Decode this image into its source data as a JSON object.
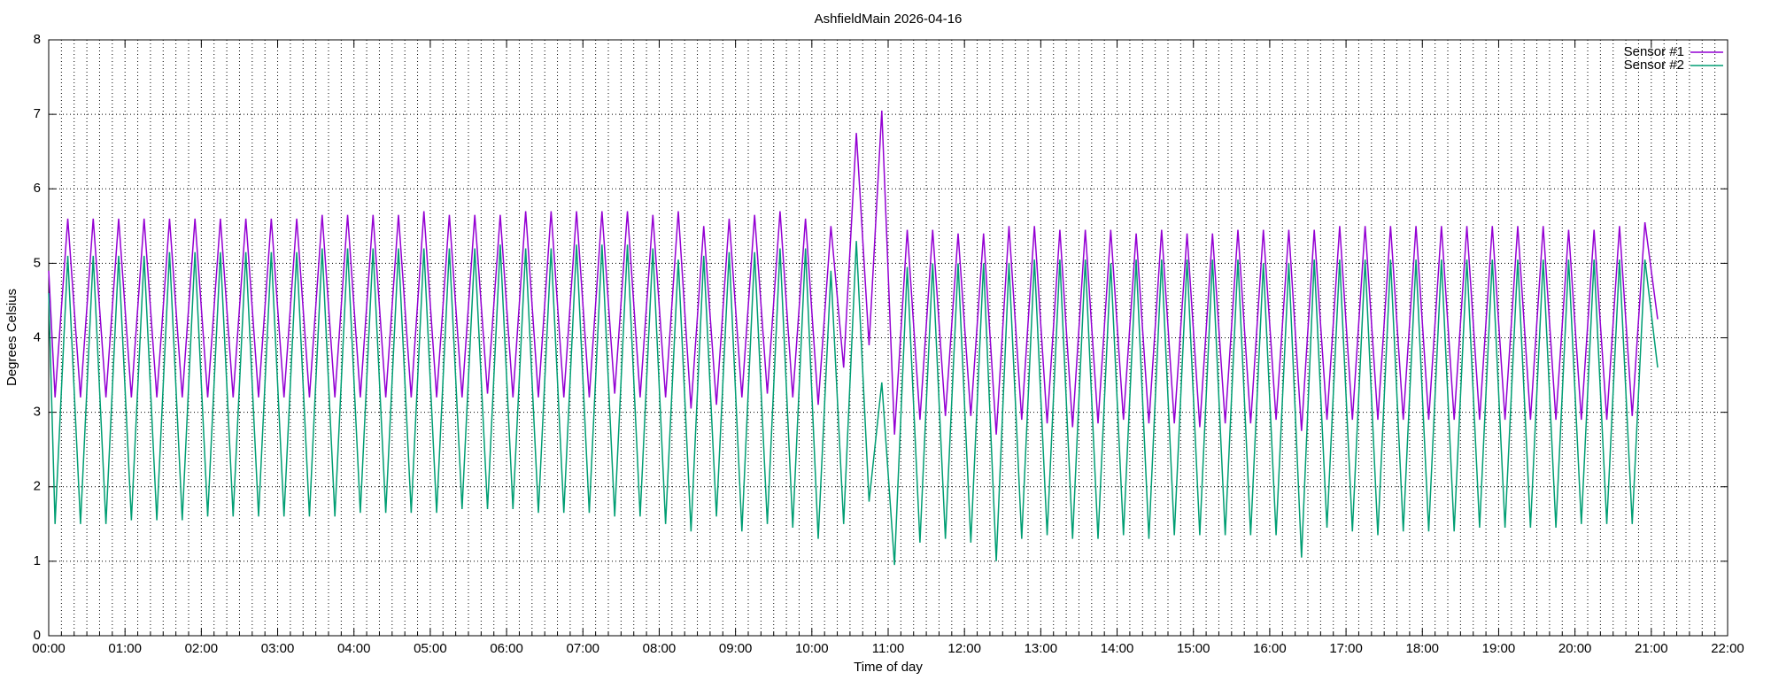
{
  "chart_data": {
    "type": "line",
    "title": "AshfieldMain 2026-04-16",
    "x_label": "Time of day",
    "y_label": "Degrees Celsius",
    "xlim": [
      0,
      1320
    ],
    "xticks": [
      {
        "value": 0,
        "label": "00:00"
      },
      {
        "value": 60,
        "label": "01:00"
      },
      {
        "value": 120,
        "label": "02:00"
      },
      {
        "value": 180,
        "label": "03:00"
      },
      {
        "value": 240,
        "label": "04:00"
      },
      {
        "value": 300,
        "label": "05:00"
      },
      {
        "value": 360,
        "label": "06:00"
      },
      {
        "value": 420,
        "label": "07:00"
      },
      {
        "value": 480,
        "label": "08:00"
      },
      {
        "value": 540,
        "label": "09:00"
      },
      {
        "value": 600,
        "label": "10:00"
      },
      {
        "value": 660,
        "label": "11:00"
      },
      {
        "value": 720,
        "label": "12:00"
      },
      {
        "value": 780,
        "label": "13:00"
      },
      {
        "value": 840,
        "label": "14:00"
      },
      {
        "value": 900,
        "label": "15:00"
      },
      {
        "value": 960,
        "label": "16:00"
      },
      {
        "value": 1020,
        "label": "17:00"
      },
      {
        "value": 1080,
        "label": "18:00"
      },
      {
        "value": 1140,
        "label": "19:00"
      },
      {
        "value": 1200,
        "label": "20:00"
      },
      {
        "value": 1260,
        "label": "21:00"
      },
      {
        "value": 1320,
        "label": "22:00"
      }
    ],
    "x_minor_intervals": 6,
    "ylim": [
      0,
      8
    ],
    "yticks": [
      0,
      1,
      2,
      3,
      4,
      5,
      6,
      7,
      8
    ],
    "grid": true,
    "legend": "top right",
    "x": [
      0,
      5,
      15,
      25,
      35,
      45,
      55,
      65,
      75,
      85,
      95,
      105,
      115,
      125,
      135,
      145,
      155,
      165,
      175,
      185,
      195,
      205,
      215,
      225,
      235,
      245,
      255,
      265,
      275,
      285,
      295,
      305,
      315,
      325,
      335,
      345,
      355,
      365,
      375,
      385,
      395,
      405,
      415,
      425,
      435,
      445,
      455,
      465,
      475,
      485,
      495,
      505,
      515,
      525,
      535,
      545,
      555,
      565,
      575,
      585,
      595,
      605,
      615,
      625,
      635,
      645,
      655,
      665,
      675,
      685,
      695,
      705,
      715,
      725,
      735,
      745,
      755,
      765,
      775,
      785,
      795,
      805,
      815,
      825,
      835,
      845,
      855,
      865,
      875,
      885,
      895,
      905,
      915,
      925,
      935,
      945,
      955,
      965,
      975,
      985,
      995,
      1005,
      1015,
      1025,
      1035,
      1045,
      1055,
      1065,
      1075,
      1085,
      1095,
      1105,
      1115,
      1125,
      1135,
      1145,
      1155,
      1165,
      1175,
      1185,
      1195,
      1205,
      1215,
      1225,
      1235,
      1245,
      1255,
      1265
    ],
    "series": [
      {
        "name": "Sensor #1",
        "color": "#9400d3",
        "values": [
          4.9,
          3.2,
          5.6,
          3.2,
          5.6,
          3.2,
          5.6,
          3.2,
          5.6,
          3.2,
          5.6,
          3.2,
          5.6,
          3.2,
          5.6,
          3.2,
          5.6,
          3.2,
          5.6,
          3.2,
          5.6,
          3.2,
          5.65,
          3.2,
          5.65,
          3.2,
          5.65,
          3.2,
          5.65,
          3.2,
          5.7,
          3.2,
          5.65,
          3.2,
          5.65,
          3.25,
          5.65,
          3.2,
          5.7,
          3.2,
          5.7,
          3.2,
          5.7,
          3.2,
          5.7,
          3.25,
          5.7,
          3.2,
          5.65,
          3.2,
          5.7,
          3.05,
          5.5,
          3.1,
          5.6,
          3.2,
          5.65,
          3.25,
          5.7,
          3.2,
          5.6,
          3.1,
          5.5,
          3.6,
          6.75,
          3.9,
          7.05,
          2.7,
          5.45,
          2.9,
          5.45,
          2.95,
          5.4,
          2.95,
          5.4,
          2.7,
          5.5,
          2.9,
          5.5,
          2.85,
          5.45,
          2.8,
          5.45,
          2.85,
          5.45,
          2.9,
          5.4,
          2.85,
          5.45,
          2.85,
          5.4,
          2.8,
          5.4,
          2.85,
          5.45,
          2.85,
          5.45,
          2.9,
          5.45,
          2.75,
          5.45,
          2.9,
          5.5,
          2.9,
          5.5,
          2.9,
          5.5,
          2.9,
          5.5,
          2.9,
          5.5,
          2.9,
          5.5,
          2.9,
          5.5,
          2.9,
          5.5,
          2.9,
          5.5,
          2.9,
          5.45,
          2.9,
          5.45,
          2.9,
          5.5,
          2.95,
          5.55,
          4.25
        ]
      },
      {
        "name": "Sensor #2",
        "color": "#009e73",
        "values": [
          4.6,
          1.5,
          5.1,
          1.5,
          5.1,
          1.5,
          5.1,
          1.55,
          5.1,
          1.55,
          5.15,
          1.55,
          5.15,
          1.6,
          5.15,
          1.6,
          5.15,
          1.6,
          5.15,
          1.6,
          5.15,
          1.6,
          5.2,
          1.6,
          5.2,
          1.65,
          5.2,
          1.65,
          5.2,
          1.65,
          5.2,
          1.65,
          5.2,
          1.7,
          5.2,
          1.7,
          5.25,
          1.7,
          5.2,
          1.65,
          5.2,
          1.65,
          5.25,
          1.65,
          5.25,
          1.6,
          5.25,
          1.6,
          5.2,
          1.5,
          5.05,
          1.4,
          5.1,
          1.6,
          5.15,
          1.4,
          5.15,
          1.5,
          5.2,
          1.45,
          5.2,
          1.3,
          4.9,
          1.5,
          5.3,
          1.8,
          3.4,
          0.95,
          4.95,
          1.25,
          5.0,
          1.3,
          5.0,
          1.25,
          5.0,
          1.0,
          5.0,
          1.3,
          5.05,
          1.35,
          5.05,
          1.3,
          5.05,
          1.3,
          5.0,
          1.35,
          5.05,
          1.3,
          5.05,
          1.35,
          5.05,
          1.35,
          5.05,
          1.35,
          5.05,
          1.35,
          5.0,
          1.35,
          5.0,
          1.05,
          5.05,
          1.45,
          5.05,
          1.4,
          5.05,
          1.35,
          5.05,
          1.4,
          5.05,
          1.4,
          5.05,
          1.4,
          5.05,
          1.45,
          5.05,
          1.45,
          5.05,
          1.45,
          5.05,
          1.45,
          5.05,
          1.5,
          5.05,
          1.5,
          5.05,
          1.5,
          5.05,
          3.6
        ]
      }
    ]
  }
}
